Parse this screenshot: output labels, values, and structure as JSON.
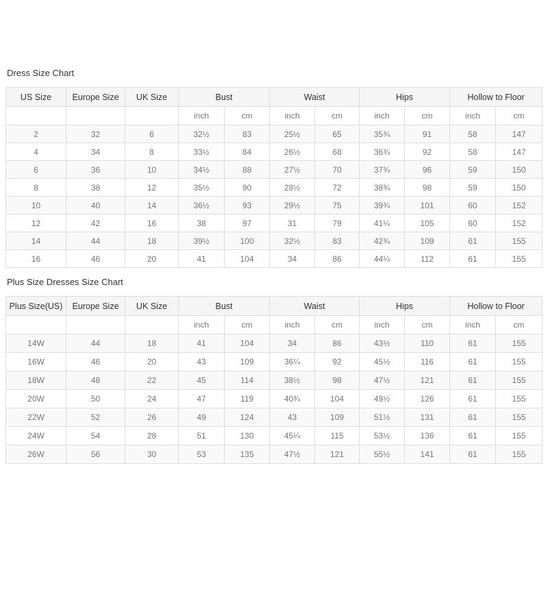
{
  "page": {
    "background": "#ffffff",
    "colors": {
      "header_bg": "#f5f5f5",
      "border": "#dddddd",
      "header_text": "#333333",
      "cell_text": "#757575",
      "stripe_bg": "#f9f9f9",
      "title_text": "#333333"
    }
  },
  "tables": [
    {
      "title": "Dress Size Chart",
      "column_groups": [
        {
          "label": "US Size",
          "span": 1
        },
        {
          "label": "Europe Size",
          "span": 1
        },
        {
          "label": "UK Size",
          "span": 1
        },
        {
          "label": "Bust",
          "span": 2
        },
        {
          "label": "Waist",
          "span": 2
        },
        {
          "label": "Hips",
          "span": 2
        },
        {
          "label": "Hollow to Floor",
          "span": 2
        }
      ],
      "unit_row": [
        "",
        "",
        "",
        "inch",
        "cm",
        "inch",
        "cm",
        "inch",
        "cm",
        "inch",
        "cm"
      ],
      "rows": [
        [
          "2",
          "32",
          "6",
          "32½",
          "83",
          "25½",
          "65",
          "35¾",
          "91",
          "58",
          "147"
        ],
        [
          "4",
          "34",
          "8",
          "33½",
          "84",
          "26½",
          "68",
          "36¾",
          "92",
          "58",
          "147"
        ],
        [
          "6",
          "36",
          "10",
          "34½",
          "88",
          "27½",
          "70",
          "37¾",
          "96",
          "59",
          "150"
        ],
        [
          "8",
          "38",
          "12",
          "35½",
          "90",
          "28½",
          "72",
          "38¾",
          "98",
          "59",
          "150"
        ],
        [
          "10",
          "40",
          "14",
          "36½",
          "93",
          "29½",
          "75",
          "39¾",
          "101",
          "60",
          "152"
        ],
        [
          "12",
          "42",
          "16",
          "38",
          "97",
          "31",
          "79",
          "41¼",
          "105",
          "60",
          "152"
        ],
        [
          "14",
          "44",
          "18",
          "39½",
          "100",
          "32½",
          "83",
          "42¾",
          "109",
          "61",
          "155"
        ],
        [
          "16",
          "46",
          "20",
          "41",
          "104",
          "34",
          "86",
          "44¼",
          "112",
          "61",
          "155"
        ]
      ]
    },
    {
      "title": "Plus Size Dresses Size Chart",
      "column_groups": [
        {
          "label": "Plus Size(US)",
          "span": 1
        },
        {
          "label": "Europe Size",
          "span": 1
        },
        {
          "label": "UK Size",
          "span": 1
        },
        {
          "label": "Bust",
          "span": 2
        },
        {
          "label": "Waist",
          "span": 2
        },
        {
          "label": "Hips",
          "span": 2
        },
        {
          "label": "Hollow to Floor",
          "span": 2
        }
      ],
      "unit_row": [
        "",
        "",
        "",
        "inch",
        "cm",
        "inch",
        "cm",
        "inch",
        "cm",
        "inch",
        "cm"
      ],
      "rows": [
        [
          "14W",
          "44",
          "18",
          "41",
          "104",
          "34",
          "86",
          "43½",
          "110",
          "61",
          "155"
        ],
        [
          "16W",
          "46",
          "20",
          "43",
          "109",
          "36¼",
          "92",
          "45½",
          "116",
          "61",
          "155"
        ],
        [
          "18W",
          "48",
          "22",
          "45",
          "114",
          "38½",
          "98",
          "47½",
          "121",
          "61",
          "155"
        ],
        [
          "20W",
          "50",
          "24",
          "47",
          "119",
          "40¾",
          "104",
          "49½",
          "126",
          "61",
          "155"
        ],
        [
          "22W",
          "52",
          "26",
          "49",
          "124",
          "43",
          "109",
          "51½",
          "131",
          "61",
          "155"
        ],
        [
          "24W",
          "54",
          "28",
          "51",
          "130",
          "45¼",
          "115",
          "53½",
          "136",
          "61",
          "155"
        ],
        [
          "26W",
          "56",
          "30",
          "53",
          "135",
          "47½",
          "121",
          "55½",
          "141",
          "61",
          "155"
        ]
      ]
    }
  ]
}
